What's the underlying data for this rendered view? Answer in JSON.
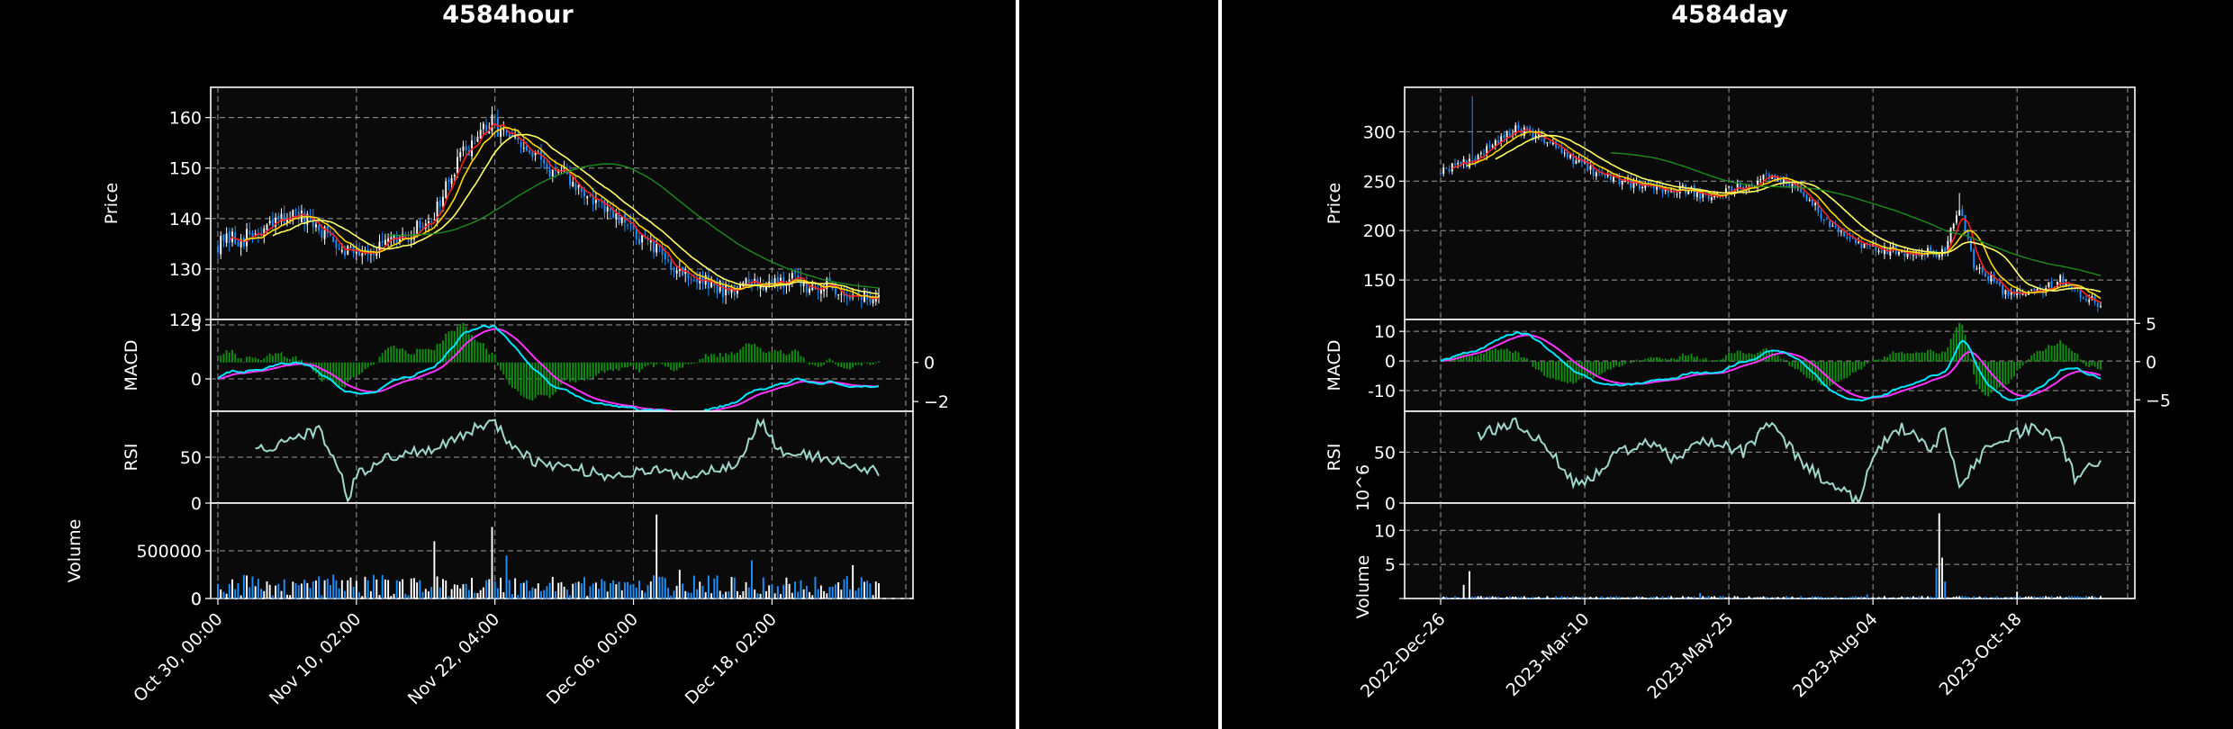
{
  "charts": [
    {
      "id": "hour",
      "title": "4584hour",
      "xlabels": [
        "Oct 30, 00:00",
        "Nov 10, 02:00",
        "Nov 22, 04:00",
        "Dec 06, 00:00",
        "Dec 18, 02:00"
      ],
      "price_label": "Price",
      "macd_label": "MACD",
      "rsi_label": "RSI",
      "volume_label": "Volume",
      "volume_exponent": ""
    },
    {
      "id": "day",
      "title": "4584day",
      "xlabels": [
        "2022-Dec-26",
        "2023-Mar-10",
        "2023-May-25",
        "2023-Aug-04",
        "2023-Oct-18"
      ],
      "price_label": "Price",
      "macd_label": "MACD",
      "rsi_label": "RSI",
      "volume_label": "Volume",
      "volume_exponent": "10^6"
    }
  ],
  "chart_data": [
    {
      "type": "candlestick",
      "title": "4584hour",
      "x_tick_labels": [
        "Oct 30, 00:00",
        "Nov 10, 02:00",
        "Nov 22, 04:00",
        "Dec 06, 00:00",
        "Dec 18, 02:00"
      ],
      "bar_count": 230,
      "x_ticks_at_bar": [
        0,
        48,
        96,
        144,
        192
      ],
      "price": {
        "ylabel": "Price",
        "ylim": [
          120,
          166
        ],
        "yticks": [
          120,
          130,
          140,
          150,
          160
        ],
        "close_keypoints": [
          [
            0,
            135
          ],
          [
            15,
            137
          ],
          [
            25,
            141
          ],
          [
            35,
            138
          ],
          [
            45,
            134
          ],
          [
            55,
            134
          ],
          [
            65,
            136
          ],
          [
            75,
            141
          ],
          [
            85,
            153
          ],
          [
            95,
            159
          ],
          [
            105,
            154
          ],
          [
            115,
            150
          ],
          [
            125,
            146
          ],
          [
            135,
            141
          ],
          [
            145,
            137
          ],
          [
            155,
            132
          ],
          [
            165,
            128
          ],
          [
            175,
            126
          ],
          [
            185,
            127
          ],
          [
            195,
            128
          ],
          [
            205,
            127
          ],
          [
            215,
            126
          ],
          [
            225,
            124
          ]
        ],
        "volatility": 1.6,
        "ma_colors": [
          "#ff2020",
          "#ffd700",
          "#ffff66",
          "#1c8c1c"
        ],
        "ma_windows": [
          5,
          10,
          20,
          60
        ]
      },
      "macd": {
        "ylabel": "MACD",
        "ylim": [
          -3,
          5.5
        ],
        "yticks": [
          0,
          5
        ],
        "hist_ylim": [
          -2.5,
          2.2
        ],
        "hist_yticks": [
          -2,
          0
        ],
        "line_colors": [
          "#00e5ff",
          "#ff33ff"
        ],
        "hist_color": "#0f8f0f"
      },
      "rsi": {
        "ylabel": "RSI",
        "ylim": [
          0,
          100
        ],
        "yticks": [
          0,
          50
        ],
        "start_bar": 13,
        "color": "#9fd8cc",
        "keypoints": [
          [
            13,
            55
          ],
          [
            25,
            70
          ],
          [
            35,
            80
          ],
          [
            42,
            40
          ],
          [
            45,
            5
          ],
          [
            48,
            30
          ],
          [
            55,
            45
          ],
          [
            65,
            55
          ],
          [
            75,
            60
          ],
          [
            85,
            75
          ],
          [
            95,
            90
          ],
          [
            100,
            70
          ],
          [
            110,
            45
          ],
          [
            120,
            40
          ],
          [
            135,
            30
          ],
          [
            150,
            35
          ],
          [
            165,
            30
          ],
          [
            180,
            45
          ],
          [
            188,
            90
          ],
          [
            195,
            55
          ],
          [
            210,
            50
          ],
          [
            225,
            35
          ]
        ]
      },
      "volume": {
        "ylabel": "Volume",
        "ylim": [
          0,
          1000000
        ],
        "yticks": [
          0,
          500000
        ],
        "tick_labels": [
          "0",
          "500000"
        ],
        "exponent": "",
        "base_volume": 80000,
        "spikes": [
          [
            3,
            50000
          ],
          [
            40,
            250000
          ],
          [
            55,
            200000
          ],
          [
            75,
            600000
          ],
          [
            85,
            150000
          ],
          [
            95,
            750000
          ],
          [
            100,
            450000
          ],
          [
            152,
            880000
          ],
          [
            160,
            300000
          ],
          [
            185,
            400000
          ],
          [
            220,
            350000
          ]
        ],
        "up_color": "#ffffff",
        "down_color": "#1e90ff"
      }
    },
    {
      "type": "candlestick",
      "title": "4584day",
      "x_tick_labels": [
        "2022-Dec-26",
        "2023-Mar-10",
        "2023-May-25",
        "2023-Aug-04",
        "2023-Oct-18"
      ],
      "bar_count": 230,
      "x_ticks_at_bar": [
        0,
        50,
        100,
        150,
        200
      ],
      "price": {
        "ylabel": "Price",
        "ylim": [
          110,
          345
        ],
        "yticks": [
          150,
          200,
          250,
          300
        ],
        "close_keypoints": [
          [
            0,
            258
          ],
          [
            10,
            270
          ],
          [
            20,
            290
          ],
          [
            25,
            302
          ],
          [
            35,
            295
          ],
          [
            45,
            275
          ],
          [
            55,
            255
          ],
          [
            65,
            248
          ],
          [
            75,
            245
          ],
          [
            85,
            240
          ],
          [
            95,
            235
          ],
          [
            105,
            245
          ],
          [
            115,
            255
          ],
          [
            125,
            240
          ],
          [
            135,
            205
          ],
          [
            145,
            185
          ],
          [
            155,
            180
          ],
          [
            165,
            175
          ],
          [
            175,
            180
          ],
          [
            180,
            225
          ],
          [
            185,
            165
          ],
          [
            195,
            140
          ],
          [
            205,
            135
          ],
          [
            215,
            150
          ],
          [
            225,
            130
          ],
          [
            229,
            125
          ]
        ],
        "volatility": 5,
        "ma_colors": [
          "#ff2020",
          "#ffd700",
          "#ffff66",
          "#1c8c1c"
        ],
        "ma_windows": [
          5,
          10,
          20,
          60
        ]
      },
      "macd": {
        "ylabel": "MACD",
        "ylim": [
          -17,
          14
        ],
        "yticks": [
          -10,
          0,
          10
        ],
        "hist_ylim": [
          -6.5,
          5.5
        ],
        "hist_yticks": [
          -5,
          0,
          5
        ],
        "line_colors": [
          "#00e5ff",
          "#ff33ff"
        ],
        "hist_color": "#0f8f0f"
      },
      "rsi": {
        "ylabel": "RSI",
        "ylim": [
          0,
          90
        ],
        "yticks": [
          0,
          50
        ],
        "start_bar": 13,
        "color": "#9fd8cc",
        "keypoints": [
          [
            13,
            65
          ],
          [
            25,
            80
          ],
          [
            35,
            60
          ],
          [
            48,
            15
          ],
          [
            60,
            45
          ],
          [
            70,
            60
          ],
          [
            80,
            45
          ],
          [
            92,
            60
          ],
          [
            105,
            50
          ],
          [
            115,
            80
          ],
          [
            125,
            40
          ],
          [
            135,
            20
          ],
          [
            145,
            0
          ],
          [
            150,
            50
          ],
          [
            160,
            75
          ],
          [
            170,
            55
          ],
          [
            175,
            70
          ],
          [
            180,
            20
          ],
          [
            190,
            55
          ],
          [
            205,
            75
          ],
          [
            215,
            60
          ],
          [
            220,
            25
          ],
          [
            229,
            40
          ]
        ]
      },
      "volume": {
        "ylabel": "Volume",
        "ylim": [
          0,
          14
        ],
        "yticks": [
          5,
          10
        ],
        "tick_labels": [
          "5",
          "10"
        ],
        "exponent": "10^6",
        "base_volume": 0.25,
        "spikes": [
          [
            8,
            2.0
          ],
          [
            10,
            4.0
          ],
          [
            90,
            0.8
          ],
          [
            148,
            0.6
          ],
          [
            172,
            4.5
          ],
          [
            173,
            12.5
          ],
          [
            174,
            6.0
          ],
          [
            175,
            2.5
          ],
          [
            200,
            1.0
          ]
        ],
        "up_color": "#ffffff",
        "down_color": "#1e90ff"
      }
    }
  ]
}
